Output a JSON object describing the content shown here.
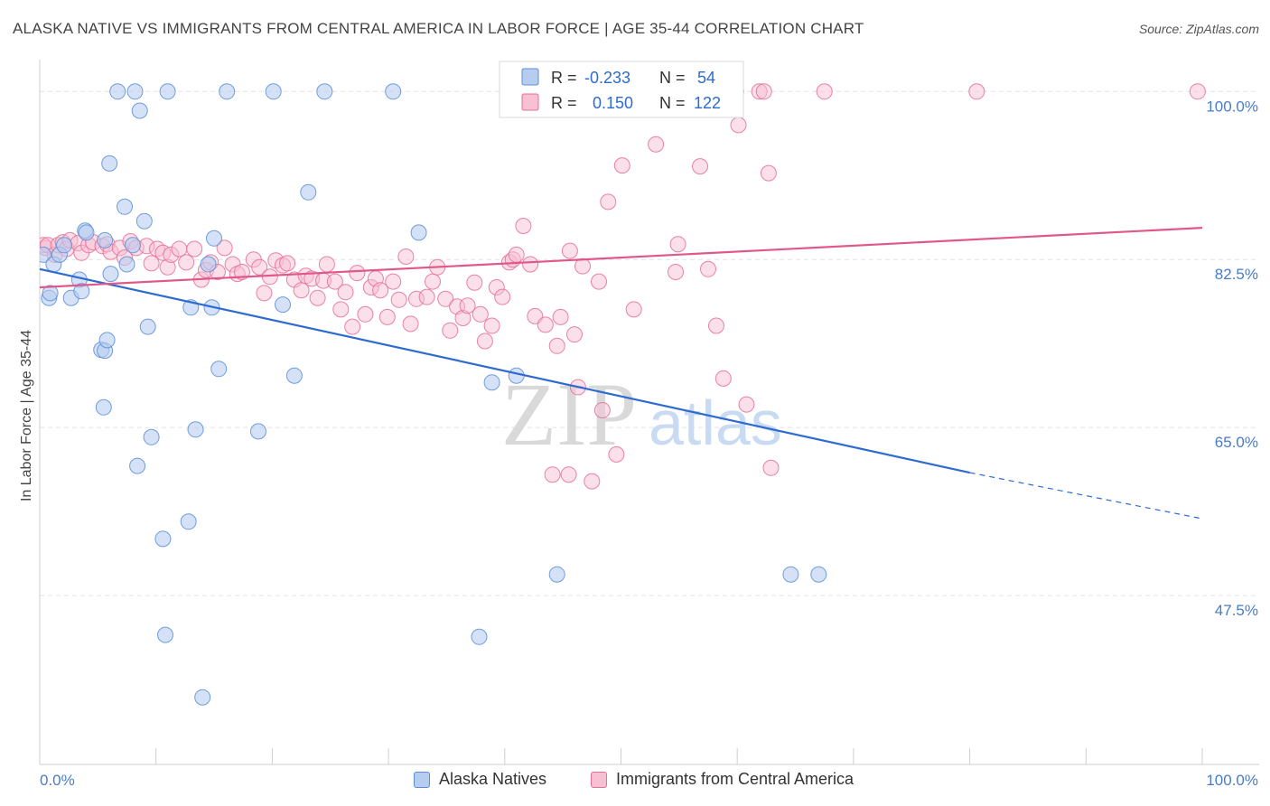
{
  "header": {
    "title": "ALASKA NATIVE VS IMMIGRANTS FROM CENTRAL AMERICA IN LABOR FORCE | AGE 35-44 CORRELATION CHART",
    "source": "Source: ZipAtlas.com"
  },
  "watermark": {
    "zip": "ZIP",
    "atlas": "atlas"
  },
  "legend": {
    "rows": [
      {
        "r_label": "R =",
        "r_value": "-0.233",
        "n_label": "N =",
        "n_value": "54"
      },
      {
        "r_label": "R =",
        "r_value": "0.150",
        "n_label": "N =",
        "n_value": "122"
      }
    ]
  },
  "bottom_legend": {
    "series1": "Alaska Natives",
    "series2": "Immigrants from Central America"
  },
  "chart_data": {
    "type": "scatter",
    "title": "ALASKA NATIVE VS IMMIGRANTS FROM CENTRAL AMERICA IN LABOR FORCE | AGE 35-44 CORRELATION CHART",
    "xlabel": "",
    "ylabel": "In Labor Force | Age 35-44",
    "xlim": [
      0,
      100
    ],
    "ylim": [
      30,
      102
    ],
    "x_tick_labels": [
      "0.0%",
      "100.0%"
    ],
    "y_ticks": [
      47.5,
      65.0,
      82.5,
      100.0
    ],
    "y_tick_labels": [
      "47.5%",
      "65.0%",
      "82.5%",
      "100.0%"
    ],
    "grid": true,
    "legend_position": "top-center",
    "colors": {
      "series1": "#5b8ed6",
      "series1_fill": "#b7cdf0",
      "series2": "#e56f98",
      "series2_fill": "#f7c0d3"
    },
    "series": [
      {
        "name": "Alaska Natives",
        "R": -0.233,
        "N": 54,
        "trend": {
          "x0": 0,
          "y0": 81.5,
          "x1": 80,
          "y1": 60.3,
          "dash_x1": 100,
          "dash_y1": 55.5
        },
        "points": [
          [
            0.3,
            83
          ],
          [
            0.8,
            78.5
          ],
          [
            0.9,
            79
          ],
          [
            1.2,
            82
          ],
          [
            1.7,
            83
          ],
          [
            2.1,
            84
          ],
          [
            2.7,
            78.5
          ],
          [
            3.4,
            80.4
          ],
          [
            3.6,
            79.2
          ],
          [
            3.9,
            85.5
          ],
          [
            4,
            85.3
          ],
          [
            5.3,
            73.1
          ],
          [
            5.5,
            67.1
          ],
          [
            5.6,
            73
          ],
          [
            5.8,
            74.1
          ],
          [
            5.6,
            84.5
          ],
          [
            6.0,
            92.5
          ],
          [
            6.1,
            81
          ],
          [
            6.7,
            100
          ],
          [
            7.3,
            88
          ],
          [
            7.5,
            82
          ],
          [
            8.0,
            84
          ],
          [
            8.2,
            100
          ],
          [
            8.4,
            61
          ],
          [
            8.6,
            98
          ],
          [
            9,
            86.5
          ],
          [
            9.3,
            75.5
          ],
          [
            9.6,
            64
          ],
          [
            10.6,
            53.4
          ],
          [
            10.8,
            43.4
          ],
          [
            11.0,
            100
          ],
          [
            12.8,
            55.2
          ],
          [
            13.0,
            77.5
          ],
          [
            13.4,
            64.8
          ],
          [
            14.0,
            36.9
          ],
          [
            14.5,
            82
          ],
          [
            14.8,
            77.5
          ],
          [
            15.0,
            84.7
          ],
          [
            15.4,
            71.1
          ],
          [
            16.1,
            100
          ],
          [
            18.8,
            64.6
          ],
          [
            20.1,
            100
          ],
          [
            20.9,
            77.8
          ],
          [
            21.9,
            70.4
          ],
          [
            23.1,
            89.5
          ],
          [
            24.5,
            100
          ],
          [
            30.4,
            100
          ],
          [
            32.6,
            85.3
          ],
          [
            37.8,
            43.2
          ],
          [
            38.9,
            69.7
          ],
          [
            41.0,
            70.4
          ],
          [
            44.5,
            49.7
          ],
          [
            64.6,
            49.7
          ],
          [
            67.0,
            49.7
          ]
        ]
      },
      {
        "name": "Immigrants from Central America",
        "R": 0.15,
        "N": 122,
        "trend": {
          "x0": 0,
          "y0": 79.6,
          "x1": 100,
          "y1": 85.8
        },
        "points": [
          [
            0.3,
            84
          ],
          [
            0.5,
            83.7
          ],
          [
            0.7,
            84
          ],
          [
            1.3,
            83
          ],
          [
            1.6,
            84
          ],
          [
            2,
            84.3
          ],
          [
            2.3,
            83.6
          ],
          [
            2.6,
            84.5
          ],
          [
            3.3,
            84.2
          ],
          [
            3.6,
            83.2
          ],
          [
            4.2,
            84
          ],
          [
            4.6,
            84.3
          ],
          [
            5.4,
            83.9
          ],
          [
            5.8,
            84.1
          ],
          [
            6.1,
            83.3
          ],
          [
            6.9,
            83.7
          ],
          [
            7.3,
            82.7
          ],
          [
            7.8,
            84.4
          ],
          [
            8.3,
            83.7
          ],
          [
            9.2,
            83.9
          ],
          [
            9.6,
            82.1
          ],
          [
            10.1,
            83.6
          ],
          [
            10.6,
            83.2
          ],
          [
            11.0,
            81.7
          ],
          [
            11.3,
            83
          ],
          [
            12.0,
            83.6
          ],
          [
            12.6,
            82.2
          ],
          [
            13.3,
            83.6
          ],
          [
            13.9,
            80.4
          ],
          [
            14.3,
            81.4
          ],
          [
            14.7,
            82.2
          ],
          [
            15.3,
            81.2
          ],
          [
            15.9,
            83.7
          ],
          [
            16.6,
            82
          ],
          [
            17.0,
            81
          ],
          [
            17.4,
            81.2
          ],
          [
            18.4,
            82.5
          ],
          [
            18.9,
            81.7
          ],
          [
            19.3,
            79
          ],
          [
            19.8,
            80.7
          ],
          [
            20.3,
            82.4
          ],
          [
            20.9,
            81.9
          ],
          [
            21.3,
            82.1
          ],
          [
            21.9,
            80.4
          ],
          [
            22.5,
            79.3
          ],
          [
            22.9,
            80.8
          ],
          [
            23.4,
            80.5
          ],
          [
            23.9,
            78.5
          ],
          [
            24.4,
            80.3
          ],
          [
            24.7,
            82
          ],
          [
            25.4,
            80.2
          ],
          [
            25.9,
            77.3
          ],
          [
            26.3,
            79.1
          ],
          [
            26.9,
            75.5
          ],
          [
            27.3,
            81.1
          ],
          [
            28.0,
            76.8
          ],
          [
            28.5,
            79.6
          ],
          [
            28.9,
            80.5
          ],
          [
            29.3,
            79.3
          ],
          [
            29.9,
            76.5
          ],
          [
            30.4,
            80.2
          ],
          [
            30.9,
            78.3
          ],
          [
            31.5,
            82.8
          ],
          [
            31.9,
            75.8
          ],
          [
            32.4,
            78.4
          ],
          [
            33.3,
            78.6
          ],
          [
            33.8,
            80.2
          ],
          [
            34.2,
            81.7
          ],
          [
            34.9,
            78.4
          ],
          [
            35.3,
            75.1
          ],
          [
            35.9,
            77.6
          ],
          [
            36.4,
            76.4
          ],
          [
            36.8,
            77.7
          ],
          [
            37.4,
            80.1
          ],
          [
            37.9,
            76.8
          ],
          [
            38.3,
            74
          ],
          [
            38.9,
            75.6
          ],
          [
            39.3,
            79.6
          ],
          [
            39.8,
            78.6
          ],
          [
            40.4,
            82.2
          ],
          [
            40.7,
            82.5
          ],
          [
            41.0,
            83
          ],
          [
            41.6,
            86
          ],
          [
            42.2,
            82
          ],
          [
            42.6,
            76.6
          ],
          [
            43.5,
            75.7
          ],
          [
            44.1,
            60.1
          ],
          [
            44.5,
            73.5
          ],
          [
            44.8,
            76.5
          ],
          [
            45.5,
            60.1
          ],
          [
            45.6,
            83.4
          ],
          [
            46.0,
            74.7
          ],
          [
            46.3,
            69.2
          ],
          [
            46.7,
            81.8
          ],
          [
            47.5,
            59.4
          ],
          [
            48.1,
            80.2
          ],
          [
            48.4,
            66.8
          ],
          [
            48.9,
            88.5
          ],
          [
            49.2,
            100
          ],
          [
            49.6,
            62.2
          ],
          [
            50.1,
            92.3
          ],
          [
            51.1,
            77.3
          ],
          [
            53.0,
            94.5
          ],
          [
            53.5,
            100
          ],
          [
            54.1,
            98.5
          ],
          [
            54.7,
            81.2
          ],
          [
            54.9,
            84.1
          ],
          [
            56.8,
            92.2
          ],
          [
            57.1,
            100
          ],
          [
            57.5,
            81.5
          ],
          [
            58.2,
            75.6
          ],
          [
            58.8,
            70.1
          ],
          [
            59.9,
            100
          ],
          [
            60.1,
            96.5
          ],
          [
            60.8,
            67.4
          ],
          [
            61.9,
            100
          ],
          [
            62.3,
            100
          ],
          [
            62.7,
            91.5
          ],
          [
            62.9,
            60.8
          ],
          [
            67.5,
            100
          ],
          [
            80.6,
            100
          ],
          [
            99.6,
            100
          ]
        ]
      }
    ]
  }
}
